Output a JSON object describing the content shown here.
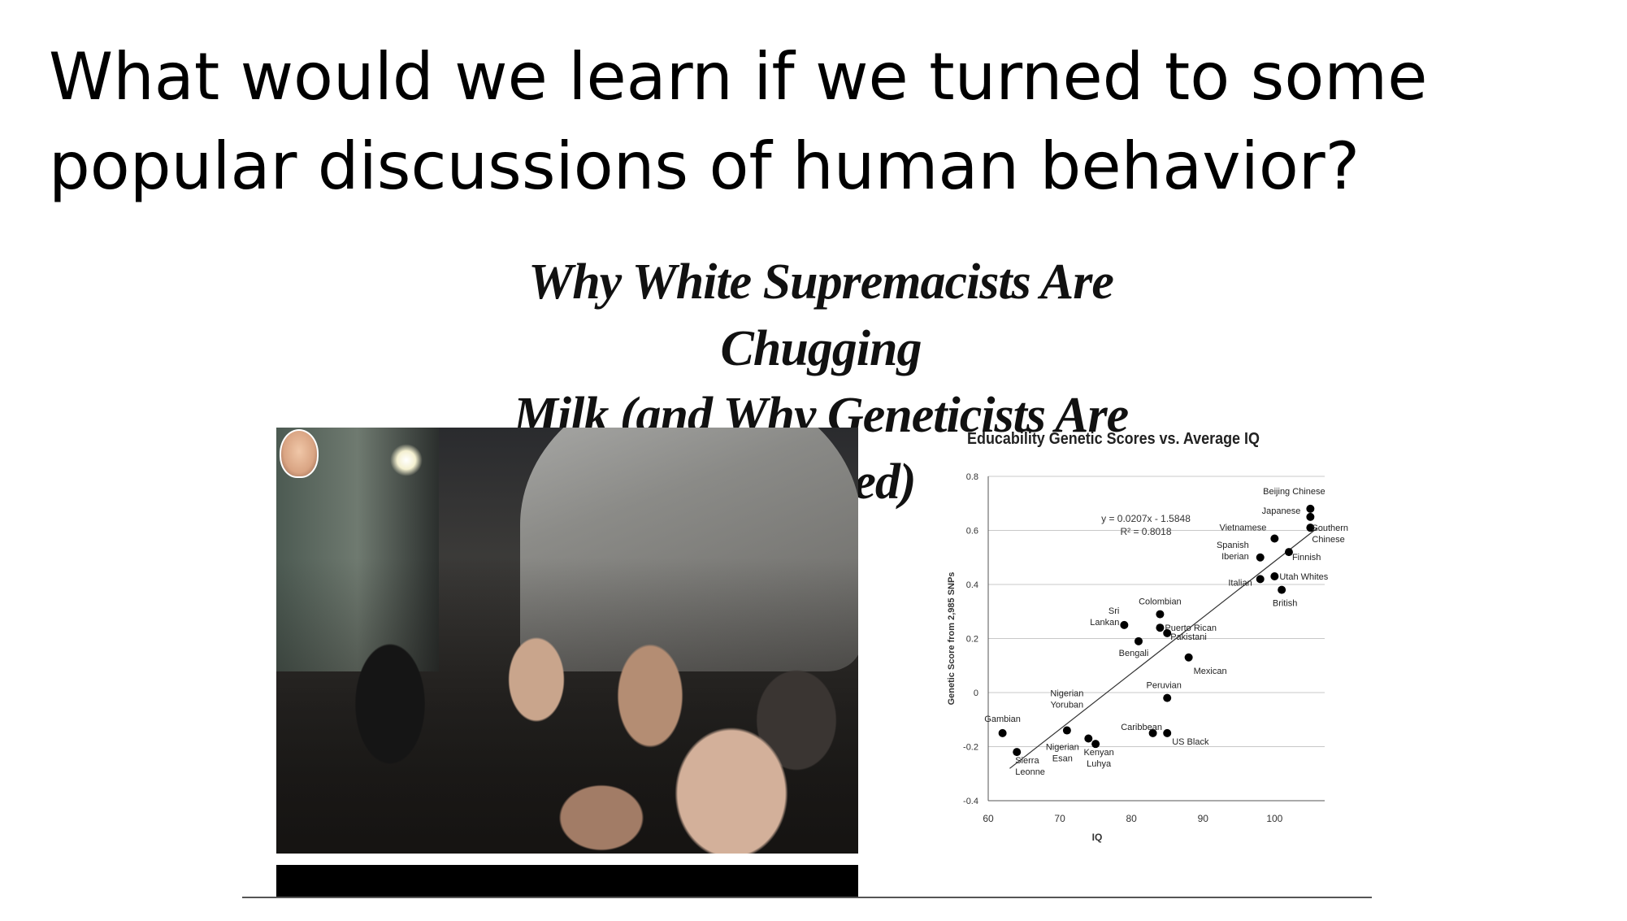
{
  "slide": {
    "title": "What would we learn if we turned to some popular discussions of human behavior?"
  },
  "headline": {
    "line1": "Why White Supremacists Are Chugging",
    "line2": "Milk (and Why Geneticists Are Alarmed)"
  },
  "chart_data": {
    "type": "scatter",
    "title": "Educability Genetic Scores vs. Average IQ",
    "xlabel": "IQ",
    "ylabel": "Genetic Score from 2,985 SNPs",
    "xlim": [
      60,
      107
    ],
    "ylim": [
      -0.4,
      0.8
    ],
    "xticks": [
      "60",
      "70",
      "80",
      "90",
      "100"
    ],
    "yticks": [
      "0.8",
      "0.6",
      "0.4",
      "0.2",
      "0",
      "-0.2",
      "-0.4"
    ],
    "grid": "horizontal",
    "equation": "y = 0.0207x - 1.5848",
    "r_squared": "R² = 0.8018",
    "trendline": {
      "slope": 0.0207,
      "intercept": -1.5848
    },
    "points": [
      {
        "x": 105,
        "y": 0.68,
        "label": "Beijing Chinese"
      },
      {
        "x": 105,
        "y": 0.65,
        "label": "Japanese"
      },
      {
        "x": 105,
        "y": 0.61,
        "label": "Southern Chinese"
      },
      {
        "x": 100,
        "y": 0.57,
        "label": "Vietnamese"
      },
      {
        "x": 102,
        "y": 0.52,
        "label": "Finnish"
      },
      {
        "x": 98,
        "y": 0.5,
        "label": "Spanish Iberian"
      },
      {
        "x": 100,
        "y": 0.43,
        "label": "Utah Whites"
      },
      {
        "x": 101,
        "y": 0.38,
        "label": "British"
      },
      {
        "x": 98,
        "y": 0.42,
        "label": "Italian"
      },
      {
        "x": 84,
        "y": 0.29,
        "label": "Colombian"
      },
      {
        "x": 79,
        "y": 0.25,
        "label": "Sri Lankan"
      },
      {
        "x": 84,
        "y": 0.24,
        "label": "Puerto Rican"
      },
      {
        "x": 85,
        "y": 0.22,
        "label": "Pakistani"
      },
      {
        "x": 81,
        "y": 0.19,
        "label": "Bengali"
      },
      {
        "x": 88,
        "y": 0.13,
        "label": "Mexican"
      },
      {
        "x": 85,
        "y": -0.02,
        "label": "Peruvian"
      },
      {
        "x": 62,
        "y": -0.15,
        "label": "Gambian"
      },
      {
        "x": 71,
        "y": -0.14,
        "label": "Nigerian Yoruban"
      },
      {
        "x": 74,
        "y": -0.17,
        "label": "Nigerian Esan"
      },
      {
        "x": 83,
        "y": -0.15,
        "label": "Caribbean"
      },
      {
        "x": 85,
        "y": -0.15,
        "label": "US Black"
      },
      {
        "x": 64,
        "y": -0.22,
        "label": "Sierra Leonne"
      },
      {
        "x": 75,
        "y": -0.19,
        "label": "Kenyan Luhya"
      }
    ],
    "label_texts": [
      {
        "lines": [
          "Beijing Chinese"
        ]
      },
      {
        "lines": [
          "Japanese"
        ]
      },
      {
        "lines": [
          "Southern",
          "Chinese"
        ]
      },
      {
        "lines": [
          "Vietnamese"
        ]
      },
      {
        "lines": [
          "Finnish"
        ]
      },
      {
        "lines": [
          "Spanish",
          "Iberian"
        ]
      },
      {
        "lines": [
          "Utah Whites"
        ]
      },
      {
        "lines": [
          "British"
        ]
      },
      {
        "lines": [
          "Italian"
        ]
      },
      {
        "lines": [
          "Colombian"
        ]
      },
      {
        "lines": [
          "Sri",
          "Lankan"
        ]
      },
      {
        "lines": [
          "Puerto Rican"
        ]
      },
      {
        "lines": [
          "Pakistani"
        ]
      },
      {
        "lines": [
          "Bengali"
        ]
      },
      {
        "lines": [
          "Mexican"
        ]
      },
      {
        "lines": [
          "Peruvian"
        ]
      },
      {
        "lines": [
          "Gambian"
        ]
      },
      {
        "lines": [
          "Nigerian",
          "Yoruban"
        ]
      },
      {
        "lines": [
          "Nigerian",
          "Esan"
        ]
      },
      {
        "lines": [
          "Caribbean"
        ]
      },
      {
        "lines": [
          "US Black"
        ]
      },
      {
        "lines": [
          "Sierra",
          "Leonne"
        ]
      },
      {
        "lines": [
          "Kenyan",
          "Luhya"
        ]
      }
    ]
  }
}
